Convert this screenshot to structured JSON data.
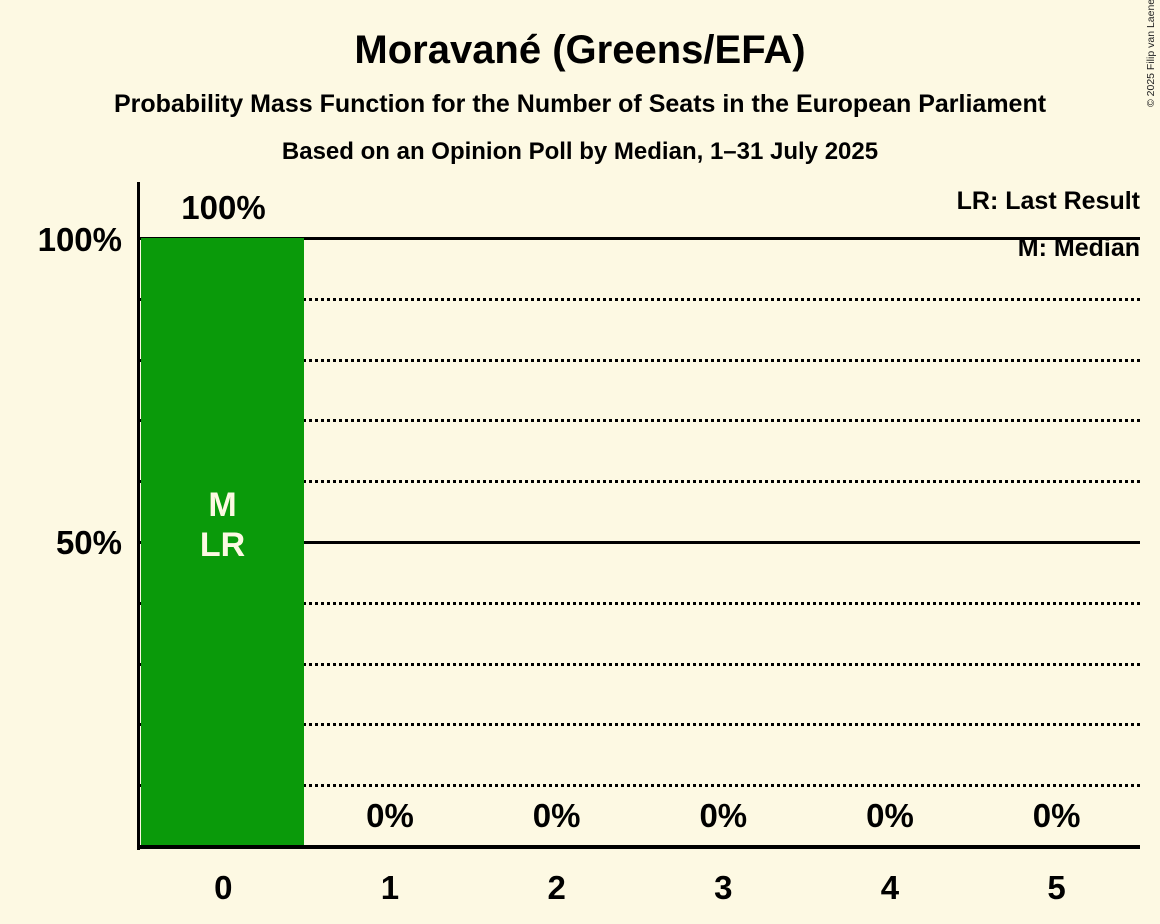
{
  "page": {
    "title": "Moravané (Greens/EFA)",
    "subtitle": "Probability Mass Function for the Number of Seats in the European Parliament",
    "poll_line": "Based on an Opinion Poll by Median, 1–31 July 2025",
    "copyright": "© 2025 Filip van Laenen"
  },
  "legend": {
    "last_result": "LR: Last Result",
    "median": "M: Median"
  },
  "y_axis": {
    "tick_100": "100%",
    "tick_50": "50%"
  },
  "bar_marker": {
    "median": "M",
    "last_result": "LR"
  },
  "colors": {
    "background": "#FDF9E3",
    "bar": "#0A9A0A",
    "text": "#000000",
    "bar_text": "#FDF9E3",
    "grid": "#000000"
  },
  "chart_data": {
    "type": "bar",
    "title": "Moravané (Greens/EFA)",
    "subtitle": "Probability Mass Function for the Number of Seats in the European Parliament",
    "source": "Based on an Opinion Poll by Median, 1–31 July 2025",
    "categories": [
      "0",
      "1",
      "2",
      "3",
      "4",
      "5"
    ],
    "values": [
      100,
      0,
      0,
      0,
      0,
      0
    ],
    "value_labels": [
      "100%",
      "0%",
      "0%",
      "0%",
      "0%",
      "0%"
    ],
    "xlabel": "",
    "ylabel": "",
    "ylim": [
      0,
      100
    ],
    "ytick_labels": [
      "100%",
      "50%"
    ],
    "solid_gridlines_pct": [
      100,
      50
    ],
    "dotted_gridlines_pct": [
      90,
      80,
      70,
      60,
      40,
      30,
      20,
      10
    ],
    "median_seats": "0",
    "last_result_seats": "0",
    "legend_position": "top-right",
    "legend_entries": [
      "LR: Last Result",
      "M: Median"
    ]
  }
}
